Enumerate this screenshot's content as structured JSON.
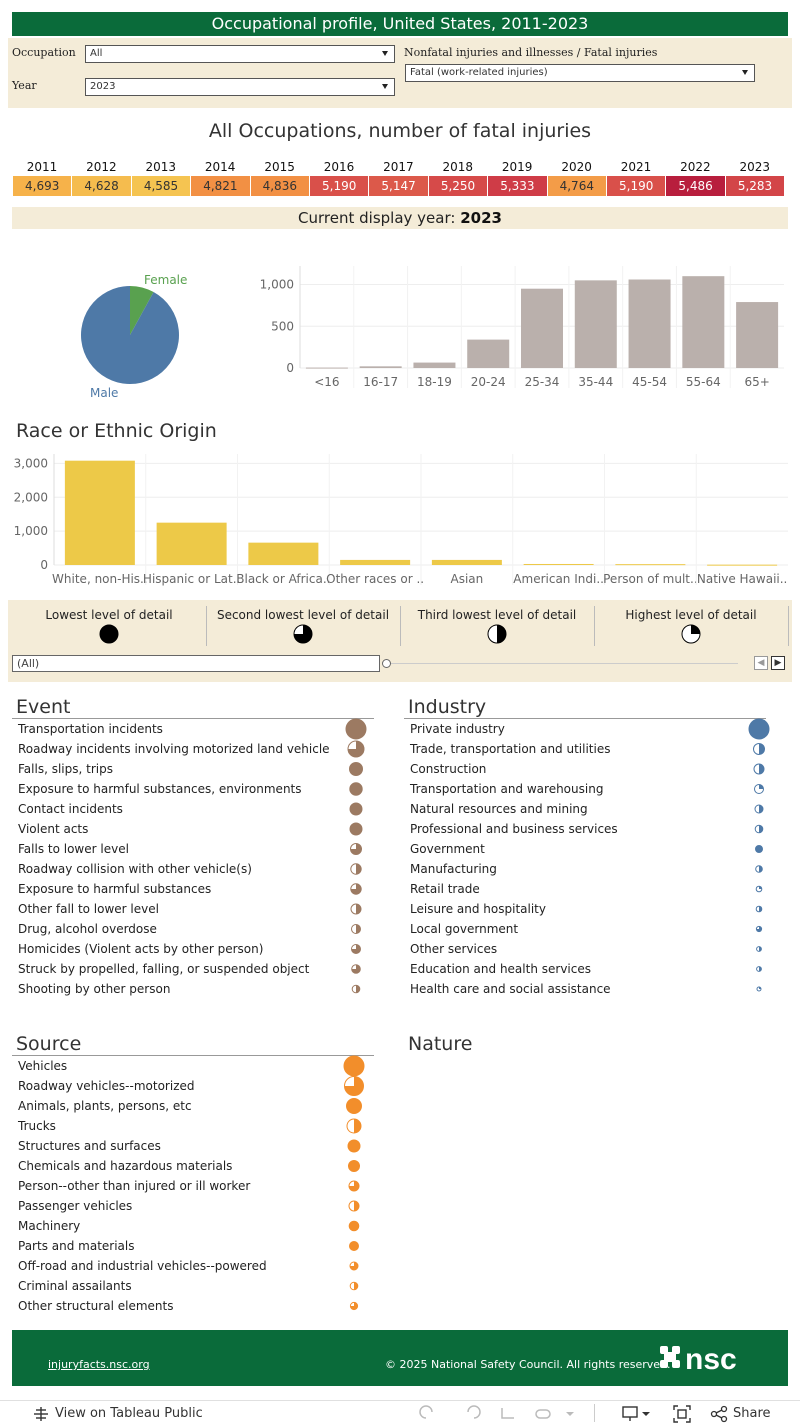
{
  "title": "Occupational profile, United States, 2011-2023",
  "filters": {
    "occupation_label": "Occupation",
    "occupation_value": "All",
    "year_label": "Year",
    "year_value": "2023",
    "injury_type_label": "Nonfatal injuries and illnesses / Fatal injuries",
    "injury_type_value": "Fatal (work-related injuries)"
  },
  "main_heading": "All Occupations, number of fatal injuries",
  "year_table": [
    {
      "year": "2011",
      "value": "4,693",
      "color": "#f6b24a"
    },
    {
      "year": "2012",
      "value": "4,628",
      "color": "#f5bc4e"
    },
    {
      "year": "2013",
      "value": "4,585",
      "color": "#f5c451"
    },
    {
      "year": "2014",
      "value": "4,821",
      "color": "#f29044"
    },
    {
      "year": "2015",
      "value": "4,836",
      "color": "#f29044"
    },
    {
      "year": "2016",
      "value": "5,190",
      "color": "#d9504a"
    },
    {
      "year": "2017",
      "value": "5,147",
      "color": "#dc594a"
    },
    {
      "year": "2018",
      "value": "5,250",
      "color": "#d64a49"
    },
    {
      "year": "2019",
      "value": "5,333",
      "color": "#cf3c47"
    },
    {
      "year": "2020",
      "value": "4,764",
      "color": "#f39c48"
    },
    {
      "year": "2021",
      "value": "5,190",
      "color": "#d9504a"
    },
    {
      "year": "2022",
      "value": "5,486",
      "color": "#b81e3d"
    },
    {
      "year": "2023",
      "value": "5,283",
      "color": "#d34548"
    }
  ],
  "display_year": {
    "label": "Current display year:",
    "value": "2023"
  },
  "chart_data": [
    {
      "type": "pie",
      "labels": [
        "Male",
        "Female"
      ],
      "values": [
        92,
        8
      ],
      "colors": [
        "#4e79a7",
        "#59a14f"
      ]
    },
    {
      "type": "bar",
      "categories": [
        "<16",
        "16-17",
        "18-19",
        "20-24",
        "25-34",
        "35-44",
        "45-54",
        "55-64",
        "65+"
      ],
      "values": [
        5,
        20,
        65,
        340,
        950,
        1050,
        1060,
        1100,
        790
      ],
      "yticks": [
        "0",
        "500",
        "1,000"
      ],
      "ylim": [
        0,
        1150
      ],
      "color": "#bab0ac"
    },
    {
      "type": "bar",
      "title": "Race or Ethnic Origin",
      "categories": [
        "White, non-His..",
        "Hispanic or Lat..",
        "Black or Africa..",
        "Other races or ..",
        "Asian",
        "American Indi..",
        "Person of mult..",
        "Native Hawaii.."
      ],
      "values": [
        3080,
        1250,
        660,
        150,
        150,
        30,
        25,
        10
      ],
      "yticks": [
        "0",
        "1,000",
        "2,000",
        "3,000"
      ],
      "ylim": [
        0,
        3100
      ],
      "color": "#edc948"
    }
  ],
  "detail_levels": [
    {
      "label": "Lowest level of detail",
      "fraction": 1.0
    },
    {
      "label": "Second lowest level of detail",
      "fraction": 0.75
    },
    {
      "label": "Third lowest level of detail",
      "fraction": 0.5
    },
    {
      "label": "Highest level of detail",
      "fraction": 0.25
    }
  ],
  "detail_filter_value": "(All)",
  "event": {
    "title": "Event",
    "color": "#9c7a62",
    "items": [
      {
        "label": "Transportation incidents",
        "size": 1.0,
        "fraction": 1.0
      },
      {
        "label": "Roadway incidents involving motorized land vehicle",
        "size": 0.8,
        "fraction": 0.75
      },
      {
        "label": "Falls, slips, trips",
        "size": 0.65,
        "fraction": 1.0
      },
      {
        "label": "Exposure to harmful substances, environments",
        "size": 0.62,
        "fraction": 1.0
      },
      {
        "label": "Contact incidents",
        "size": 0.6,
        "fraction": 1.0
      },
      {
        "label": "Violent acts",
        "size": 0.6,
        "fraction": 1.0
      },
      {
        "label": "Falls to lower level",
        "size": 0.55,
        "fraction": 0.75
      },
      {
        "label": "Roadway collision with other vehicle(s)",
        "size": 0.52,
        "fraction": 0.5
      },
      {
        "label": "Exposure to harmful substances",
        "size": 0.52,
        "fraction": 0.75
      },
      {
        "label": "Other fall to lower level",
        "size": 0.5,
        "fraction": 0.5
      },
      {
        "label": "Drug, alcohol overdose",
        "size": 0.45,
        "fraction": 0.5
      },
      {
        "label": "Homicides (Violent acts by other person)",
        "size": 0.45,
        "fraction": 0.75
      },
      {
        "label": "Struck by propelled, falling, or suspended object",
        "size": 0.43,
        "fraction": 0.75
      },
      {
        "label": "Shooting by other person",
        "size": 0.38,
        "fraction": 0.5
      }
    ]
  },
  "industry": {
    "title": "Industry",
    "color": "#4e79a7",
    "items": [
      {
        "label": "Private industry",
        "size": 1.0,
        "fraction": 1.0
      },
      {
        "label": "Trade, transportation and utilities",
        "size": 0.55,
        "fraction": 0.5
      },
      {
        "label": "Construction",
        "size": 0.5,
        "fraction": 0.5
      },
      {
        "label": "Transportation and warehousing",
        "size": 0.45,
        "fraction": 0.25
      },
      {
        "label": "Natural resources and mining",
        "size": 0.4,
        "fraction": 0.5
      },
      {
        "label": "Professional and business services",
        "size": 0.38,
        "fraction": 0.5
      },
      {
        "label": "Government",
        "size": 0.35,
        "fraction": 1.0
      },
      {
        "label": "Manufacturing",
        "size": 0.33,
        "fraction": 0.5
      },
      {
        "label": "Retail trade",
        "size": 0.28,
        "fraction": 0.25
      },
      {
        "label": "Leisure and hospitality",
        "size": 0.28,
        "fraction": 0.5
      },
      {
        "label": "Local government",
        "size": 0.26,
        "fraction": 0.75
      },
      {
        "label": "Other services",
        "size": 0.24,
        "fraction": 0.5
      },
      {
        "label": "Education and health services",
        "size": 0.24,
        "fraction": 0.5
      },
      {
        "label": "Health care and social assistance",
        "size": 0.2,
        "fraction": 0.25
      }
    ]
  },
  "source": {
    "title": "Source",
    "color": "#f28e2b",
    "items": [
      {
        "label": "Vehicles",
        "size": 1.0,
        "fraction": 1.0
      },
      {
        "label": "Roadway vehicles--motorized",
        "size": 0.95,
        "fraction": 0.75
      },
      {
        "label": "Animals, plants, persons, etc",
        "size": 0.75,
        "fraction": 1.0
      },
      {
        "label": "Trucks",
        "size": 0.7,
        "fraction": 0.5
      },
      {
        "label": "Structures and surfaces",
        "size": 0.6,
        "fraction": 1.0
      },
      {
        "label": "Chemicals and hazardous materials",
        "size": 0.55,
        "fraction": 1.0
      },
      {
        "label": "Person--other than injured or ill worker",
        "size": 0.5,
        "fraction": 0.75
      },
      {
        "label": "Passenger vehicles",
        "size": 0.5,
        "fraction": 0.5
      },
      {
        "label": "Machinery",
        "size": 0.48,
        "fraction": 1.0
      },
      {
        "label": "Parts and materials",
        "size": 0.45,
        "fraction": 1.0
      },
      {
        "label": "Off-road and industrial vehicles--powered",
        "size": 0.4,
        "fraction": 0.75
      },
      {
        "label": "Criminal assailants",
        "size": 0.38,
        "fraction": 0.5
      },
      {
        "label": "Other structural elements",
        "size": 0.36,
        "fraction": 0.75
      }
    ]
  },
  "nature": {
    "title": "Nature"
  },
  "footer": {
    "link": "injuryfacts.nsc.org",
    "copyright": "© 2025 National Safety Council. All rights reserved.",
    "logo": "nsc"
  },
  "toolbar": {
    "view_label": "View on Tableau Public",
    "share_label": "Share"
  }
}
